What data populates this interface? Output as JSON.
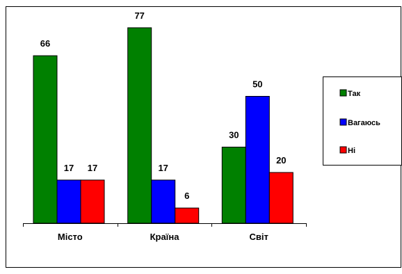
{
  "chart_data": {
    "type": "bar",
    "categories": [
      "Місто",
      "Країна",
      "Світ"
    ],
    "series": [
      {
        "name": "Так",
        "color": "#008000",
        "values": [
          66,
          77,
          30
        ]
      },
      {
        "name": "Вагаюсь",
        "color": "#0000ff",
        "values": [
          17,
          17,
          50
        ]
      },
      {
        "name": "Ні",
        "color": "#ff0000",
        "values": [
          17,
          6,
          20
        ]
      }
    ],
    "ylim": [
      0,
      80
    ],
    "grid": false,
    "legend": "right",
    "data_labels": true
  }
}
